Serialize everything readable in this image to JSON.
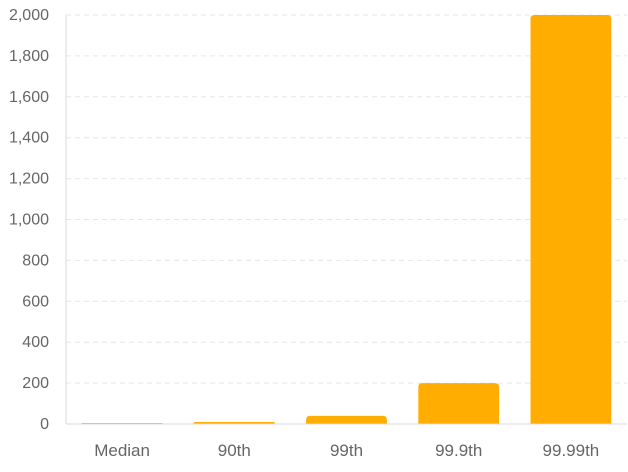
{
  "colors": {
    "bar": "#ffad00",
    "grid": "#e6e6e6",
    "axis": "#d9d9d9",
    "text": "#666666"
  },
  "chart_data": {
    "type": "bar",
    "categories": [
      "Median",
      "90th",
      "99th",
      "99.9th",
      "99.99th"
    ],
    "values": [
      2,
      10,
      40,
      200,
      2000
    ],
    "ylim": [
      0,
      2000
    ],
    "yticks": [
      0,
      200,
      400,
      600,
      800,
      1000,
      1200,
      1400,
      1600,
      1800,
      2000
    ],
    "ytick_labels": [
      "0",
      "200",
      "400",
      "600",
      "800",
      "1,000",
      "1,200",
      "1,400",
      "1,600",
      "1,800",
      "2,000"
    ],
    "grid": true,
    "grid_style": "dashed",
    "legend": "none"
  }
}
